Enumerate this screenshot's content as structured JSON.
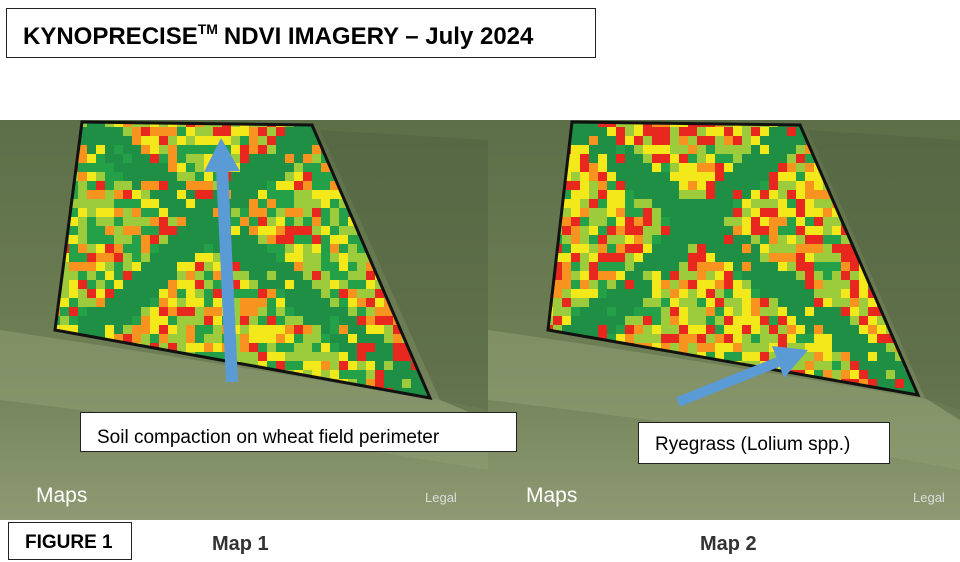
{
  "header": {
    "title": "KYNOPRECISE",
    "trademark": "TM",
    "title_rest": "NDVI IMAGERY – July 2024"
  },
  "maps": [
    {
      "label": "Map 1",
      "annotation": "Soil compaction on wheat field perimeter",
      "attribution": "Maps",
      "legal": "Legal"
    },
    {
      "label": "Map 2",
      "annotation": "Ryegrass (Lolium spp.)",
      "attribution": "Maps",
      "legal": "Legal"
    }
  ],
  "figure_label": "FIGURE 1"
}
